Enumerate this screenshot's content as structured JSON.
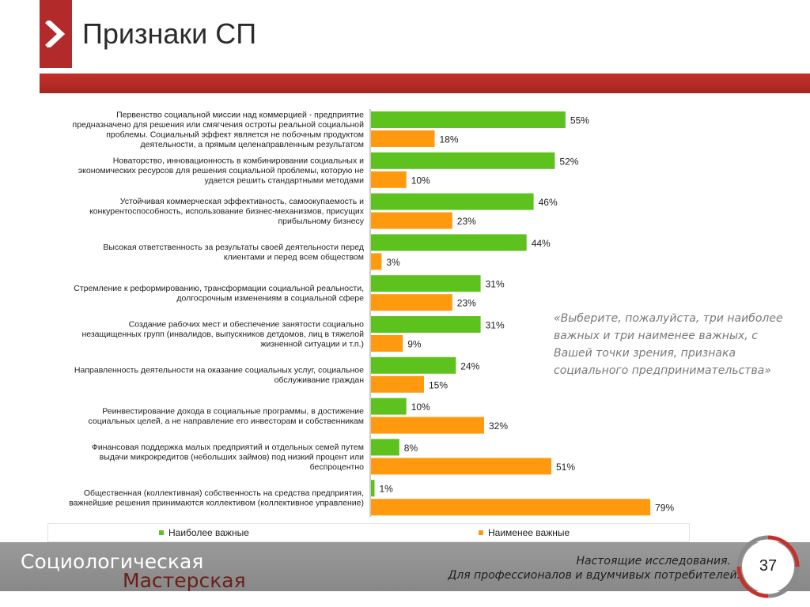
{
  "slide": {
    "title": "Признаки СП",
    "quote": "«Выберите, пожалуйста, три наиболее важных и три наименее важных, с Вашей точки зрения, признака социального предпринимательства»",
    "page_number": "37"
  },
  "footer": {
    "brand_line1": "Социологическая",
    "brand_line2": "Мастерская",
    "slogan_line1": "Настоящие исследования.",
    "slogan_line2": "Для профессионалов и вдумчивых потребителей."
  },
  "colors": {
    "accent": "#b22a2a",
    "most": "#5dc21e",
    "least": "#ff9a0f"
  },
  "chart_data": {
    "type": "bar",
    "orientation": "horizontal",
    "xlim": [
      0,
      100
    ],
    "unit": "%",
    "legend": "bottom",
    "categories": [
      [
        "Первенство социальной миссии над коммерцией - предприятие",
        "предназначено для решения или смягчения остроты реальной социальной",
        "проблемы. Социальный эффект является не побочным продуктом",
        "деятельности, а прямым целенаправленным результатом"
      ],
      [
        "Новаторство, инновационность в комбинировании социальных и",
        "экономических ресурсов для решения социальной проблемы, которую не",
        "удается решить стандартными методами"
      ],
      [
        "Устойчивая коммерческая эффективность, самоокупаемость и",
        "конкурентоспособность, использование бизнес-механизмов, присущих",
        "прибыльному бизнесу"
      ],
      [
        "Высокая ответственность за результаты своей деятельности перед",
        "клиентами и перед всем обществом"
      ],
      [
        "Стремление к реформированию, трансформации социальной реальности,",
        "долгосрочным изменениям в социальной сфере"
      ],
      [
        "Создание рабочих мест и обеспечение занятости социально",
        "незащищенных групп (инвалидов, выпускников детдомов, лиц в тяжелой",
        "жизненной ситуации и т.п.)"
      ],
      [
        "Направленность деятельности на оказание социальных услуг, социальное",
        "обслуживание граждан"
      ],
      [
        "Реинвестирование дохода в социальные программы, в достижение",
        "социальных целей, а не направление его инвесторам и собственникам"
      ],
      [
        "Финансовая поддержка малых предприятий и отдельных семей путем",
        "выдачи микрокредитов (небольших займов) под низкий процент или",
        "беспроцентно"
      ],
      [
        "Общественная (коллективная) собственность на средства предприятия,",
        "важнейшие решения принимаются коллективом (коллективное управление)"
      ]
    ],
    "series": [
      {
        "name": "Наиболее важные",
        "color": "#5dc21e",
        "values": [
          55,
          52,
          46,
          44,
          31,
          31,
          24,
          10,
          8,
          1
        ]
      },
      {
        "name": "Наименее важные",
        "color": "#ff9a0f",
        "values": [
          18,
          10,
          23,
          3,
          23,
          9,
          15,
          32,
          51,
          79
        ]
      }
    ]
  }
}
